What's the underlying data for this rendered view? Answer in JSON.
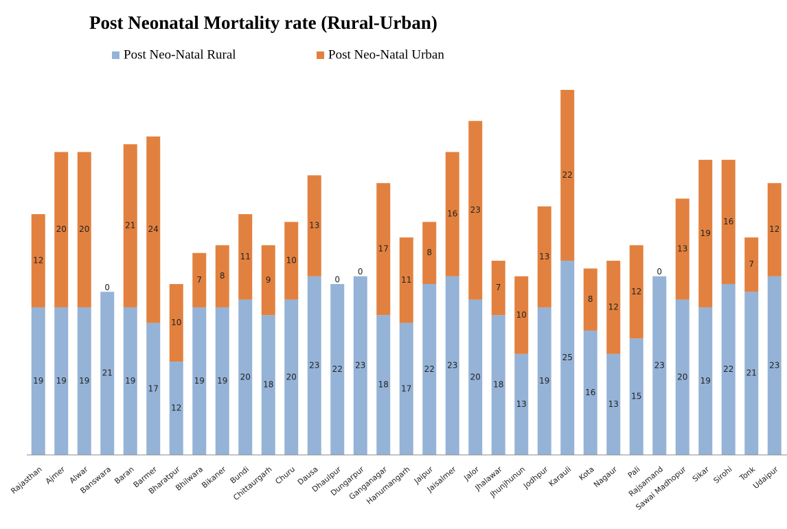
{
  "chart_data": {
    "type": "stacked_bar",
    "title": "Post Neonatal Mortality rate (Rural-Urban)",
    "categories": [
      "Rajasthan",
      "Ajmer",
      "Alwar",
      "Banswara",
      "Baran",
      "Barmer",
      "Bharatpur",
      "Bhilwara",
      "Bikaner",
      "Bundi",
      "Chittaurgarh",
      "Churu",
      "Dausa",
      "Dhaulpur",
      "Dungarpur",
      "Ganganagar",
      "Hanumangarh",
      "Jaipur",
      "Jaisalmer",
      "Jalor",
      "Jhalawar",
      "Jhunjhunun",
      "Jodhpur",
      "Karauli",
      "Kota",
      "Nagaur",
      "Pali",
      "Rajsamand",
      "Sawai Madhopur",
      "Sikar",
      "Sirohi",
      "Tonk",
      "Udaipur"
    ],
    "series": [
      {
        "name": "Post Neo-Natal  Rural",
        "color": "#95b3d7",
        "values": [
          19,
          19,
          19,
          21,
          19,
          17,
          12,
          19,
          19,
          20,
          18,
          20,
          23,
          22,
          23,
          18,
          17,
          22,
          23,
          20,
          18,
          13,
          19,
          25,
          16,
          13,
          15,
          23,
          20,
          19,
          22,
          21,
          23
        ]
      },
      {
        "name": "Post Neo-Natal  Urban",
        "color": "#e2813f",
        "values": [
          12,
          20,
          20,
          0,
          21,
          24,
          10,
          7,
          8,
          11,
          9,
          10,
          13,
          0,
          0,
          17,
          11,
          8,
          16,
          23,
          7,
          10,
          13,
          22,
          8,
          12,
          12,
          0,
          13,
          19,
          16,
          7,
          12
        ]
      }
    ],
    "ylim": [
      0,
      47
    ]
  }
}
